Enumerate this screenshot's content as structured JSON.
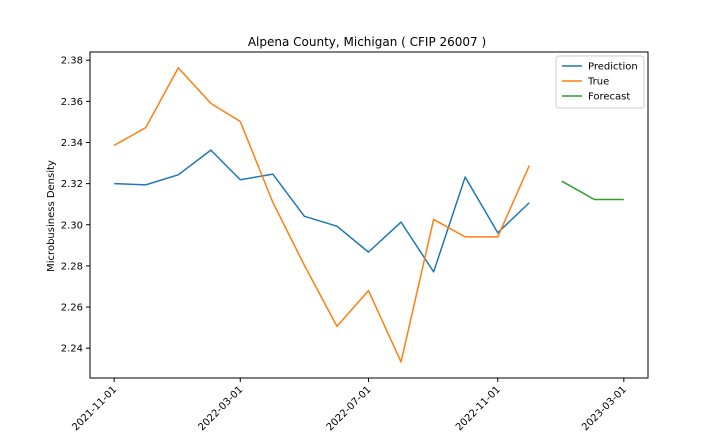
{
  "chart_data": {
    "type": "line",
    "title": "Alpena County, Michigan ( CFIP 26007 )",
    "xlabel": "",
    "ylabel": "Microbusiness Density",
    "ylim": [
      2.2255,
      2.384
    ],
    "xlim": [
      "2021-10-09",
      "2023-03-24"
    ],
    "yticks": [
      2.24,
      2.26,
      2.28,
      2.3,
      2.32,
      2.34,
      2.36,
      2.38
    ],
    "xticks": [
      "2021-11-01",
      "2022-03-01",
      "2022-07-01",
      "2022-11-01",
      "2023-03-01"
    ],
    "legend_position": "top-right",
    "grid": false,
    "series": [
      {
        "name": "Prediction",
        "color": "#1f77b4",
        "x": [
          "2021-11-01",
          "2021-12-01",
          "2022-01-01",
          "2022-02-01",
          "2022-03-01",
          "2022-04-01",
          "2022-05-01",
          "2022-06-01",
          "2022-07-01",
          "2022-08-01",
          "2022-09-01",
          "2022-10-01",
          "2022-11-01",
          "2022-12-01"
        ],
        "y": [
          2.32,
          2.3194,
          2.3243,
          2.3363,
          2.3219,
          2.3246,
          2.3041,
          2.2993,
          2.2867,
          2.3013,
          2.2771,
          2.3232,
          2.2961,
          2.3107
        ]
      },
      {
        "name": "True",
        "color": "#ff7f0e",
        "x": [
          "2021-11-01",
          "2021-12-01",
          "2022-01-01",
          "2022-02-01",
          "2022-03-01",
          "2022-04-01",
          "2022-05-01",
          "2022-06-01",
          "2022-07-01",
          "2022-08-01",
          "2022-09-01",
          "2022-10-01",
          "2022-11-01",
          "2022-12-01"
        ],
        "y": [
          2.3386,
          2.3472,
          2.3763,
          2.359,
          2.3502,
          2.3109,
          2.2803,
          2.2506,
          2.268,
          2.2333,
          2.3026,
          2.2941,
          2.2941,
          2.3287
        ]
      },
      {
        "name": "Forecast",
        "color": "#2ca02c",
        "x": [
          "2023-01-01",
          "2023-02-01",
          "2023-03-01"
        ],
        "y": [
          2.3212,
          2.3123,
          2.3123
        ]
      }
    ]
  }
}
